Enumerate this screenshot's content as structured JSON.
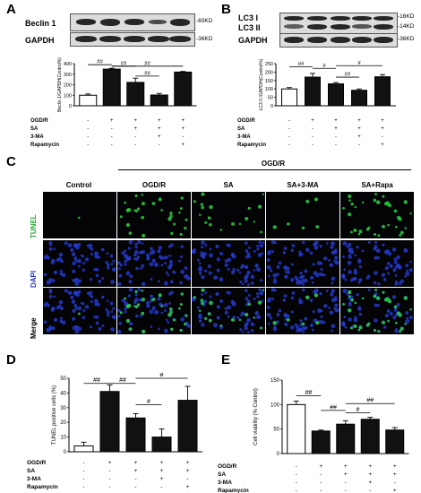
{
  "panel_letters": {
    "a": "A",
    "b": "B",
    "c": "C",
    "d": "D",
    "e": "E"
  },
  "treatments": {
    "rows": [
      "OGD/R",
      "SA",
      "3-MA",
      "Rapamycin"
    ],
    "matrix": [
      [
        "-",
        "+",
        "+",
        "+",
        "+"
      ],
      [
        "-",
        "-",
        "+",
        "+",
        "+"
      ],
      [
        "-",
        "-",
        "-",
        "+",
        "-"
      ],
      [
        "-",
        "-",
        "-",
        "-",
        "+"
      ]
    ]
  },
  "panelA": {
    "blots": [
      {
        "label": "Beclin 1",
        "marker": "-60KD"
      },
      {
        "label": "GAPDH",
        "marker": "-36KD"
      }
    ],
    "chart_data": {
      "type": "bar",
      "ylabel": "Beclin 1/GAPDH(Control%)",
      "yticks": [
        "0",
        "100",
        "200",
        "300",
        "400"
      ],
      "ylim": [
        0,
        400
      ],
      "values": [
        100,
        348,
        222,
        102,
        320
      ],
      "errors": [
        12,
        8,
        40,
        15,
        6
      ],
      "annotations": [
        "##",
        "##",
        "##",
        "##"
      ]
    }
  },
  "panelB": {
    "blots": [
      {
        "label": "LC3 I",
        "marker": "-16KD"
      },
      {
        "label": "LC3 II",
        "marker": "-14KD"
      },
      {
        "label": "GAPDH",
        "marker": "-36KD"
      }
    ],
    "chart_data": {
      "type": "bar",
      "ylabel": "LC3 II /GAPDH(Control%)",
      "yticks": [
        "0",
        "50",
        "100",
        "150",
        "200",
        "250"
      ],
      "ylim": [
        0,
        250
      ],
      "values": [
        100,
        170,
        130,
        92,
        172
      ],
      "errors": [
        8,
        22,
        8,
        8,
        13
      ],
      "annotations": [
        "##",
        "#",
        "##",
        "#"
      ]
    }
  },
  "panelC": {
    "group_label": "OGD/R",
    "columns": [
      "Control",
      "OGD/R",
      "SA",
      "SA+3-MA",
      "SA+Rapa"
    ],
    "rows": [
      "TUNEL",
      "DAPI",
      "Merge"
    ]
  },
  "panelD": {
    "chart_data": {
      "type": "bar",
      "ylabel": "TUNEL positive cells (%)",
      "yticks": [
        "0",
        "10",
        "20",
        "30",
        "40",
        "50"
      ],
      "ylim": [
        0,
        50
      ],
      "values": [
        4,
        41,
        23,
        10,
        35
      ],
      "errors": [
        2.5,
        4.5,
        3,
        5.5,
        9.5
      ],
      "annotations": [
        "##",
        "##",
        "#",
        "#"
      ]
    }
  },
  "panelE": {
    "chart_data": {
      "type": "bar",
      "ylabel": "Cell viability (% Control)",
      "yticks": [
        "0",
        "50",
        "100",
        "150"
      ],
      "ylim": [
        0,
        150
      ],
      "values": [
        100,
        46,
        60,
        70,
        48
      ],
      "errors": [
        7,
        2,
        7,
        4,
        5
      ],
      "annotations": [
        "##",
        "##",
        "#",
        "##"
      ]
    }
  },
  "colors": {
    "tunel": "#27c93f",
    "dapi": "#2438c8",
    "bar_fill": "#111111"
  }
}
